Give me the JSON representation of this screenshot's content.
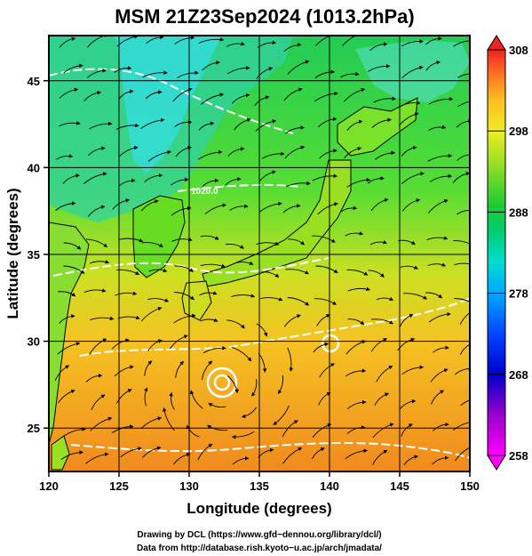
{
  "title": "MSM 21Z23Sep2024 (1013.2hPa)",
  "map": {
    "xlabel": "Longitude (degrees)",
    "ylabel": "Latitude  (degrees)",
    "lon_range": [
      120,
      150
    ],
    "lat_range": [
      22.5,
      47.6
    ],
    "lon_ticks": [
      120,
      125,
      130,
      135,
      140,
      145,
      150
    ],
    "lat_ticks": [
      25,
      30,
      35,
      40,
      45
    ],
    "lon_tick_labels": [
      "120",
      "125",
      "130",
      "135",
      "140",
      "145",
      "150"
    ],
    "lat_tick_labels": [
      "25",
      "30",
      "35",
      "40",
      "45"
    ],
    "grid": true,
    "isobar_label": "1020.0"
  },
  "colorbar": {
    "range": [
      258,
      308
    ],
    "tick_labels": [
      "308",
      "298",
      "288",
      "278",
      "268",
      "258"
    ],
    "colors": [
      "#ff00ff",
      "#9900cc",
      "#0000cc",
      "#0033ff",
      "#0099ff",
      "#00ccee",
      "#00dd99",
      "#22cc33",
      "#66dd22",
      "#cce822",
      "#ffee22",
      "#ffcc22",
      "#ff9922",
      "#ff5522",
      "#ee2222"
    ]
  },
  "credits": {
    "line1": "Drawing by DCL (https://www.gfd−dennou.org/library/dcl/)",
    "line2": "Data from http://database.rish.kyoto−u.ac.jp/arch/jmadata/"
  }
}
